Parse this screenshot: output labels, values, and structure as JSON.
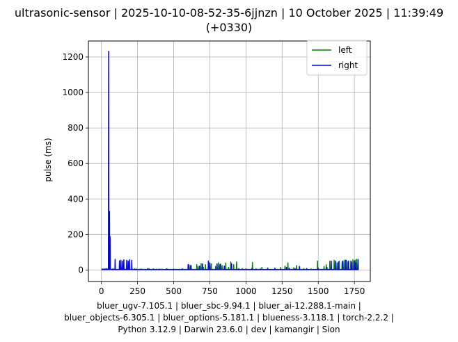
{
  "chart_data": {
    "type": "line",
    "title_lines": [
      "ultrasonic-sensor | 2025-10-10-08-52-35-6jjnzn | 10 October 2025 | 11:39:49",
      "(+0330)"
    ],
    "xlabel": "",
    "ylabel": "pulse (ms)",
    "xlim": [
      -90,
      1860
    ],
    "ylim": [
      -65,
      1290
    ],
    "xticks": [
      0,
      250,
      500,
      750,
      1000,
      1250,
      1500,
      1750
    ],
    "yticks": [
      0,
      200,
      400,
      600,
      800,
      1000,
      1200
    ],
    "grid": true,
    "legend_position": "top-right",
    "footer_lines": [
      "bluer_ugv-7.105.1 | bluer_sbc-9.94.1 | bluer_ai-12.288.1-main |",
      "bluer_objects-6.305.1 | bluer_options-5.181.1 | blueness-3.118.1 | torch-2.2.2 |",
      "Python 3.12.9 | Darwin 23.6.0 | dev | kamangir | Sion"
    ],
    "series": [
      {
        "name": "left",
        "color": "#008000",
        "baseline": 3,
        "spikes": [
          [
            5,
            5
          ],
          [
            20,
            6
          ],
          [
            45,
            7
          ],
          [
            90,
            5
          ],
          [
            130,
            5
          ],
          [
            160,
            6
          ],
          [
            200,
            4
          ],
          [
            240,
            6
          ],
          [
            280,
            5
          ],
          [
            330,
            8
          ],
          [
            380,
            5
          ],
          [
            420,
            5
          ],
          [
            455,
            6
          ],
          [
            500,
            5
          ],
          [
            540,
            4
          ],
          [
            560,
            6
          ],
          [
            605,
            30
          ],
          [
            615,
            25
          ],
          [
            660,
            30
          ],
          [
            670,
            20
          ],
          [
            690,
            36
          ],
          [
            705,
            15
          ],
          [
            720,
            30
          ],
          [
            740,
            45
          ],
          [
            760,
            35
          ],
          [
            790,
            20
          ],
          [
            810,
            40
          ],
          [
            825,
            35
          ],
          [
            835,
            25
          ],
          [
            860,
            40
          ],
          [
            880,
            15
          ],
          [
            895,
            45
          ],
          [
            915,
            30
          ],
          [
            935,
            45
          ],
          [
            975,
            8
          ],
          [
            1000,
            6
          ],
          [
            1045,
            42
          ],
          [
            1070,
            8
          ],
          [
            1110,
            15
          ],
          [
            1150,
            12
          ],
          [
            1200,
            8
          ],
          [
            1240,
            14
          ],
          [
            1270,
            22
          ],
          [
            1290,
            40
          ],
          [
            1330,
            12
          ],
          [
            1350,
            25
          ],
          [
            1400,
            8
          ],
          [
            1450,
            6
          ],
          [
            1495,
            50
          ],
          [
            1540,
            20
          ],
          [
            1555,
            30
          ],
          [
            1580,
            50
          ],
          [
            1610,
            55
          ],
          [
            1630,
            40
          ],
          [
            1645,
            50
          ],
          [
            1665,
            45
          ],
          [
            1680,
            55
          ],
          [
            1695,
            55
          ],
          [
            1705,
            45
          ],
          [
            1725,
            50
          ],
          [
            1740,
            58
          ],
          [
            1755,
            55
          ],
          [
            1765,
            60
          ],
          [
            1775,
            55
          ]
        ]
      },
      {
        "name": "right",
        "color": "#0000ff",
        "baseline": 2,
        "spikes": [
          [
            10,
            5
          ],
          [
            25,
            6
          ],
          [
            35,
            8
          ],
          [
            50,
            1232
          ],
          [
            53,
            180
          ],
          [
            56,
            330
          ],
          [
            60,
            188
          ],
          [
            64,
            6
          ],
          [
            80,
            7
          ],
          [
            95,
            60
          ],
          [
            125,
            52
          ],
          [
            135,
            55
          ],
          [
            145,
            50
          ],
          [
            155,
            58
          ],
          [
            175,
            55
          ],
          [
            185,
            50
          ],
          [
            195,
            58
          ],
          [
            210,
            55
          ],
          [
            230,
            6
          ],
          [
            270,
            5
          ],
          [
            320,
            8
          ],
          [
            360,
            6
          ],
          [
            400,
            5
          ],
          [
            450,
            6
          ],
          [
            500,
            5
          ],
          [
            560,
            6
          ],
          [
            600,
            30
          ],
          [
            620,
            25
          ],
          [
            680,
            22
          ],
          [
            700,
            35
          ],
          [
            740,
            50
          ],
          [
            750,
            40
          ],
          [
            800,
            35
          ],
          [
            820,
            30
          ],
          [
            850,
            22
          ],
          [
            900,
            35
          ],
          [
            950,
            8
          ],
          [
            1000,
            6
          ],
          [
            1040,
            8
          ],
          [
            1100,
            6
          ],
          [
            1150,
            8
          ],
          [
            1200,
            10
          ],
          [
            1280,
            15
          ],
          [
            1300,
            10
          ],
          [
            1340,
            8
          ],
          [
            1370,
            20
          ],
          [
            1420,
            8
          ],
          [
            1500,
            10
          ],
          [
            1560,
            15
          ],
          [
            1590,
            50
          ],
          [
            1620,
            50
          ],
          [
            1640,
            45
          ],
          [
            1670,
            50
          ],
          [
            1690,
            55
          ],
          [
            1710,
            50
          ],
          [
            1730,
            45
          ],
          [
            1750,
            50
          ],
          [
            1760,
            40
          ],
          [
            1775,
            60
          ]
        ]
      }
    ]
  }
}
